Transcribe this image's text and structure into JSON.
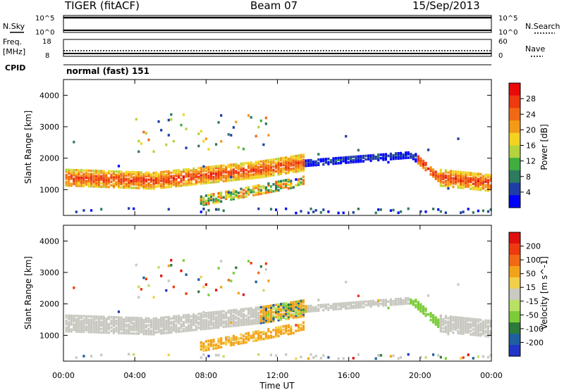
{
  "header": {
    "station": "TIGER (fitACF)",
    "beam": "Beam 07",
    "date": "15/Sep/2013"
  },
  "params": {
    "nsky_label": "N.Sky",
    "nsearch_label": "N.Search",
    "nsky_ticks": [
      "10^5",
      "10^0"
    ],
    "freq_label_1": "Freq.",
    "freq_label_2": "[MHz]",
    "freq_ticks": [
      "18",
      "8"
    ],
    "nave_ticks": [
      "60",
      "0"
    ],
    "nave_label": "Nave",
    "cpid_label": "CPID",
    "cpid_value": "normal (fast) 151"
  },
  "colors": {
    "power": [
      "#0000ff",
      "#1e3ea6",
      "#2e7a5e",
      "#3fae3f",
      "#b3d43d",
      "#f2d321",
      "#f39a18",
      "#f16a13",
      "#ee3a10",
      "#ea0a0a"
    ],
    "velocity": [
      "#2135c7",
      "#1f5fa0",
      "#2e7a3a",
      "#7ccc3a",
      "#b8e064",
      "#cacac2",
      "#f0d04a",
      "#f3a31a",
      "#f16a13",
      "#ee3a10",
      "#e01010"
    ],
    "ground_scatter": "#c8c8c0"
  },
  "chart_data": [
    {
      "type": "heatmap",
      "name": "power",
      "xlabel": "Time UT",
      "ylabel": "Slant Range [km]",
      "x_ticks": [
        "00:00",
        "04:00",
        "08:00",
        "12:00",
        "16:00",
        "20:00",
        "00:00"
      ],
      "xlim": [
        0,
        24
      ],
      "ylim": [
        180,
        4500
      ],
      "y_ticks": [
        "4000",
        "3000",
        "2000",
        "1000"
      ],
      "colorbar": {
        "label": "Power [dB]",
        "ticks": [
          "28",
          "24",
          "20",
          "16",
          "12",
          "8",
          "4"
        ],
        "range": [
          0,
          30
        ]
      }
    },
    {
      "type": "heatmap",
      "name": "velocity",
      "xlabel": "Time UT",
      "ylabel": "Slant Range [km]",
      "x_ticks": [
        "00:00",
        "04:00",
        "08:00",
        "12:00",
        "16:00",
        "20:00",
        "00:00"
      ],
      "xlim": [
        0,
        24
      ],
      "ylim": [
        180,
        4500
      ],
      "y_ticks": [
        "4000",
        "3000",
        "2000",
        "1000"
      ],
      "colorbar": {
        "label": "Velocity [m s^-1]",
        "ticks": [
          "200",
          "100",
          "50",
          "15",
          "-15",
          "-50",
          "-100",
          "-200"
        ]
      }
    }
  ]
}
